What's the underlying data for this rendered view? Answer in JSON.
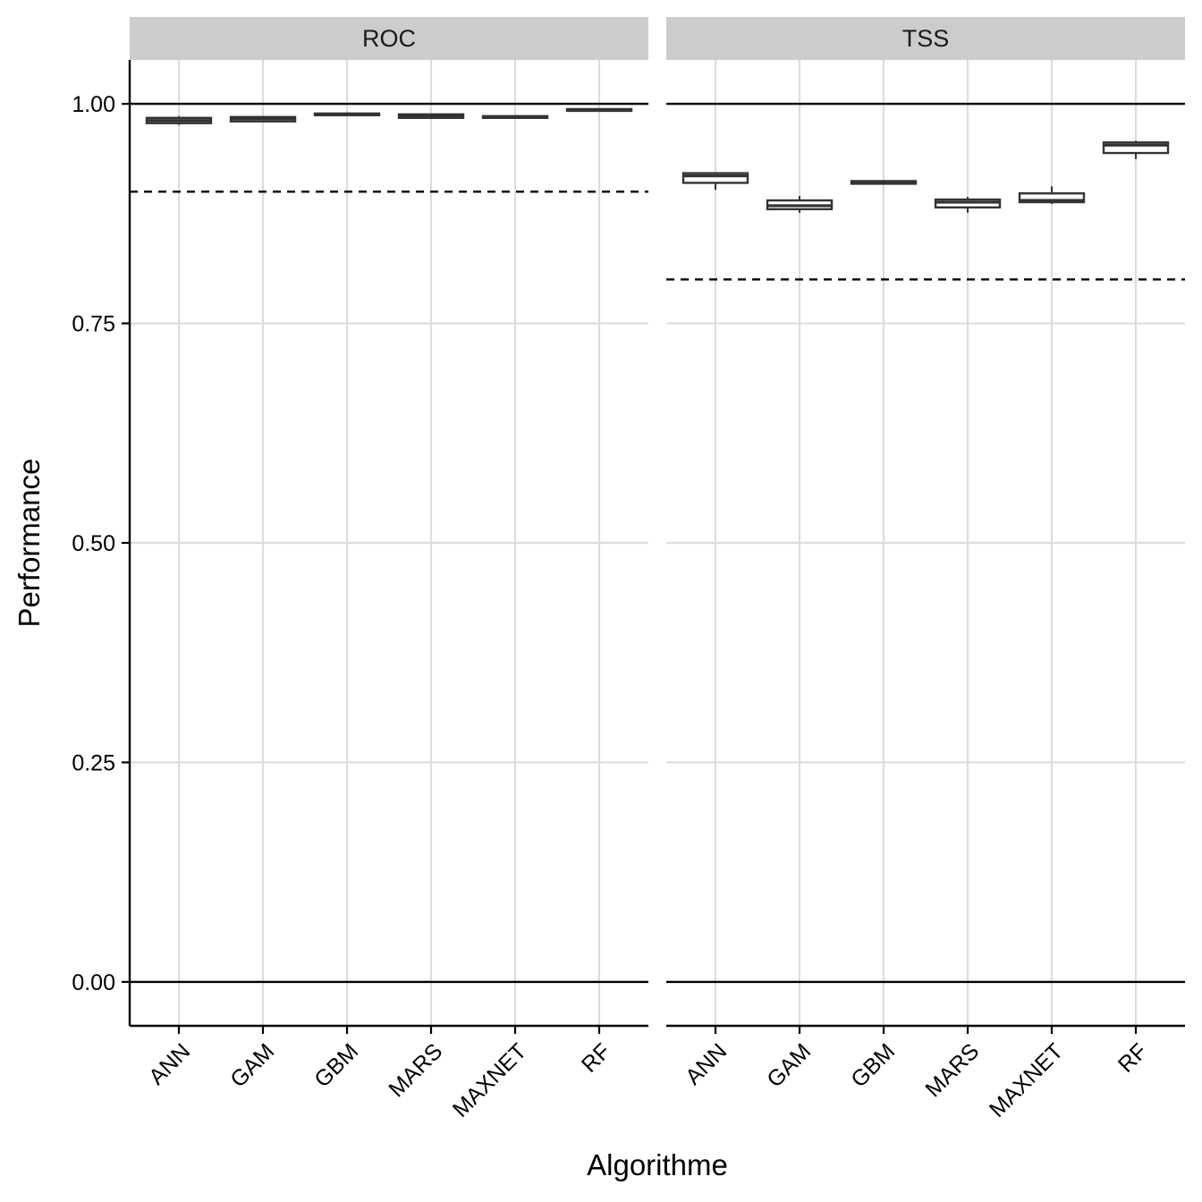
{
  "chart_data": {
    "type": "boxplot",
    "xlabel": "Algorithme",
    "ylabel": "Performance",
    "ylim": [
      -0.05,
      1.05
    ],
    "yticks": [
      0.0,
      0.25,
      0.5,
      0.75,
      1.0
    ],
    "ytick_labels": [
      "0.00",
      "0.25",
      "0.50",
      "0.75",
      "1.00"
    ],
    "categories": [
      "ANN",
      "GAM",
      "GBM",
      "MARS",
      "MAXNET",
      "RF"
    ],
    "grid": true,
    "reference_lines": {
      "solid": [
        0.0,
        1.0
      ]
    },
    "panels": [
      {
        "label": "ROC",
        "threshold_dashed": 0.9,
        "boxes": [
          {
            "category": "ANN",
            "min": 0.976,
            "q1": 0.978,
            "median": 0.981,
            "q3": 0.984,
            "max": 0.986
          },
          {
            "category": "GAM",
            "min": 0.979,
            "q1": 0.98,
            "median": 0.983,
            "q3": 0.985,
            "max": 0.986
          },
          {
            "category": "GBM",
            "min": 0.986,
            "q1": 0.987,
            "median": 0.988,
            "q3": 0.989,
            "max": 0.99
          },
          {
            "category": "MARS",
            "min": 0.983,
            "q1": 0.984,
            "median": 0.986,
            "q3": 0.988,
            "max": 0.989
          },
          {
            "category": "MAXNET",
            "min": 0.983,
            "q1": 0.984,
            "median": 0.985,
            "q3": 0.986,
            "max": 0.987
          },
          {
            "category": "RF",
            "min": 0.991,
            "q1": 0.992,
            "median": 0.993,
            "q3": 0.994,
            "max": 0.995
          }
        ]
      },
      {
        "label": "TSS",
        "threshold_dashed": 0.8,
        "boxes": [
          {
            "category": "ANN",
            "min": 0.902,
            "q1": 0.91,
            "median": 0.918,
            "q3": 0.921,
            "max": 0.922
          },
          {
            "category": "GAM",
            "min": 0.876,
            "q1": 0.88,
            "median": 0.884,
            "q3": 0.89,
            "max": 0.895
          },
          {
            "category": "GBM",
            "min": 0.908,
            "q1": 0.909,
            "median": 0.91,
            "q3": 0.912,
            "max": 0.913
          },
          {
            "category": "MARS",
            "min": 0.876,
            "q1": 0.882,
            "median": 0.888,
            "q3": 0.891,
            "max": 0.894
          },
          {
            "category": "MAXNET",
            "min": 0.886,
            "q1": 0.888,
            "median": 0.89,
            "q3": 0.898,
            "max": 0.906
          },
          {
            "category": "RF",
            "min": 0.937,
            "q1": 0.944,
            "median": 0.953,
            "q3": 0.956,
            "max": 0.958
          }
        ]
      }
    ]
  },
  "colors": {
    "strip_bg": "#cccccc",
    "grid": "#dcdcdc",
    "box_line": "#333333",
    "reference": "#000000"
  }
}
